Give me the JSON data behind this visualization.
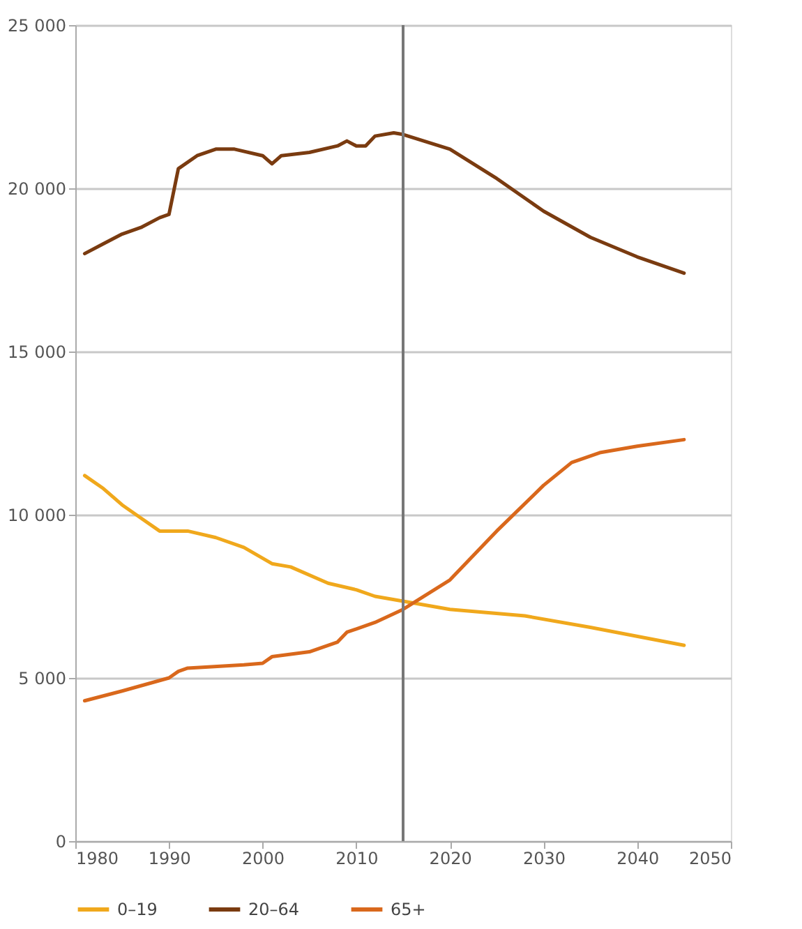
{
  "chart_data": {
    "type": "line",
    "xlim": [
      1980,
      2050
    ],
    "xticks": [
      1980,
      1990,
      2000,
      2010,
      2020,
      2030,
      2040,
      2050
    ],
    "ylim": [
      0,
      25000
    ],
    "yticks": [
      {
        "value": 0,
        "label": "0"
      },
      {
        "value": 5000,
        "label": "5 000"
      },
      {
        "value": 10000,
        "label": "10 000"
      },
      {
        "value": 15000,
        "label": "15 000"
      },
      {
        "value": 20000,
        "label": "20 000"
      },
      {
        "value": 25000,
        "label": "25 000"
      }
    ],
    "grid": "y",
    "legend": "bottom",
    "line_style": "solid",
    "marker": "none",
    "ref_lines": [
      {
        "axis": "x",
        "value": 2015,
        "label": null,
        "color": "#777777"
      }
    ],
    "series": [
      {
        "name": "0–19",
        "color": "#f0a81c",
        "x": [
          1981,
          1983,
          1985,
          1987,
          1989,
          1992,
          1995,
          1998,
          2001,
          2003,
          2007,
          2010,
          2012,
          2015,
          2020,
          2028,
          2035,
          2045
        ],
        "values": [
          11200,
          10800,
          10300,
          9900,
          9500,
          9500,
          9300,
          9000,
          8500,
          8400,
          7900,
          7700,
          7500,
          7350,
          7100,
          6900,
          6550,
          6000
        ]
      },
      {
        "name": "20–64",
        "color": "#7a3b10",
        "x": [
          1981,
          1983,
          1985,
          1987,
          1989,
          1990,
          1991,
          1993,
          1995,
          1997,
          2000,
          2001,
          2002,
          2005,
          2008,
          2009,
          2010,
          2011,
          2012,
          2014,
          2015,
          2020,
          2025,
          2030,
          2035,
          2040,
          2045
        ],
        "values": [
          18000,
          18300,
          18600,
          18800,
          19100,
          19200,
          20600,
          21000,
          21200,
          21200,
          21000,
          20750,
          21000,
          21100,
          21300,
          21450,
          21300,
          21300,
          21600,
          21700,
          21650,
          21200,
          20300,
          19300,
          18500,
          17900,
          17400
        ]
      },
      {
        "name": "65+",
        "color": "#d9681c",
        "x": [
          1981,
          1985,
          1990,
          1991,
          1992,
          1998,
          2000,
          2001,
          2005,
          2008,
          2009,
          2012,
          2015,
          2020,
          2025,
          2030,
          2033,
          2036,
          2040,
          2045
        ],
        "values": [
          4300,
          4600,
          5000,
          5200,
          5300,
          5400,
          5450,
          5650,
          5800,
          6100,
          6400,
          6700,
          7100,
          8000,
          9500,
          10900,
          11600,
          11900,
          12100,
          12300
        ]
      }
    ]
  }
}
